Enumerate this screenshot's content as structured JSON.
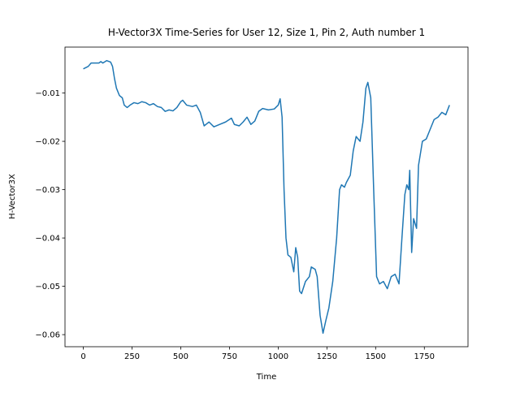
{
  "chart_data": {
    "type": "line",
    "title": "H-Vector3X Time-Series for User 12, Size 1, Pin 2, Auth number 1",
    "xlabel": "Time",
    "ylabel": "H-Vector3X",
    "x": [
      0,
      25,
      40,
      80,
      90,
      100,
      120,
      140,
      150,
      160,
      170,
      185,
      200,
      210,
      225,
      240,
      260,
      280,
      300,
      320,
      340,
      360,
      380,
      400,
      420,
      440,
      460,
      480,
      500,
      510,
      530,
      560,
      580,
      600,
      620,
      645,
      670,
      700,
      730,
      760,
      775,
      800,
      820,
      840,
      860,
      880,
      900,
      920,
      950,
      980,
      1000,
      1010,
      1020,
      1030,
      1040,
      1050,
      1065,
      1080,
      1090,
      1100,
      1110,
      1120,
      1140,
      1160,
      1170,
      1190,
      1200,
      1215,
      1230,
      1245,
      1260,
      1280,
      1300,
      1315,
      1325,
      1340,
      1350,
      1370,
      1385,
      1400,
      1420,
      1435,
      1450,
      1460,
      1475,
      1490,
      1505,
      1520,
      1540,
      1560,
      1580,
      1600,
      1620,
      1635,
      1650,
      1660,
      1670,
      1675,
      1685,
      1695,
      1710,
      1720,
      1740,
      1760,
      1775,
      1800,
      1820,
      1840,
      1860,
      1879
    ],
    "series": [
      {
        "name": "H-Vector3X",
        "color": "#1f77b4",
        "values": [
          -0.005,
          -0.0045,
          -0.0038,
          -0.0038,
          -0.0035,
          -0.0038,
          -0.0033,
          -0.0036,
          -0.0045,
          -0.007,
          -0.009,
          -0.0105,
          -0.011,
          -0.0125,
          -0.013,
          -0.0125,
          -0.012,
          -0.0122,
          -0.0118,
          -0.012,
          -0.0125,
          -0.0122,
          -0.0128,
          -0.013,
          -0.0138,
          -0.0135,
          -0.0137,
          -0.013,
          -0.0118,
          -0.0115,
          -0.0125,
          -0.0128,
          -0.0125,
          -0.014,
          -0.0168,
          -0.016,
          -0.017,
          -0.0165,
          -0.016,
          -0.0152,
          -0.0165,
          -0.0168,
          -0.016,
          -0.015,
          -0.0165,
          -0.0158,
          -0.0138,
          -0.0132,
          -0.0135,
          -0.0133,
          -0.0125,
          -0.0112,
          -0.015,
          -0.03,
          -0.04,
          -0.0435,
          -0.044,
          -0.047,
          -0.042,
          -0.044,
          -0.051,
          -0.0515,
          -0.049,
          -0.048,
          -0.046,
          -0.0465,
          -0.048,
          -0.056,
          -0.0597,
          -0.057,
          -0.0545,
          -0.049,
          -0.04,
          -0.03,
          -0.029,
          -0.0295,
          -0.0285,
          -0.027,
          -0.022,
          -0.019,
          -0.02,
          -0.016,
          -0.009,
          -0.0078,
          -0.011,
          -0.03,
          -0.048,
          -0.0495,
          -0.049,
          -0.0505,
          -0.048,
          -0.0475,
          -0.0495,
          -0.04,
          -0.031,
          -0.029,
          -0.03,
          -0.026,
          -0.043,
          -0.036,
          -0.038,
          -0.025,
          -0.02,
          -0.0195,
          -0.018,
          -0.0155,
          -0.015,
          -0.014,
          -0.0145,
          -0.0125
        ]
      }
    ],
    "xlim": [
      -94,
      1974
    ],
    "ylim": [
      -0.0625,
      -0.0005
    ],
    "xticks": [
      0,
      250,
      500,
      750,
      1000,
      1250,
      1500,
      1750
    ],
    "yticks": [
      {
        "value": -0.06,
        "label": "−0.06"
      },
      {
        "value": -0.05,
        "label": "−0.05"
      },
      {
        "value": -0.04,
        "label": "−0.04"
      },
      {
        "value": -0.03,
        "label": "−0.03"
      },
      {
        "value": -0.02,
        "label": "−0.02"
      },
      {
        "value": -0.01,
        "label": "−0.01"
      }
    ],
    "grid": false
  }
}
